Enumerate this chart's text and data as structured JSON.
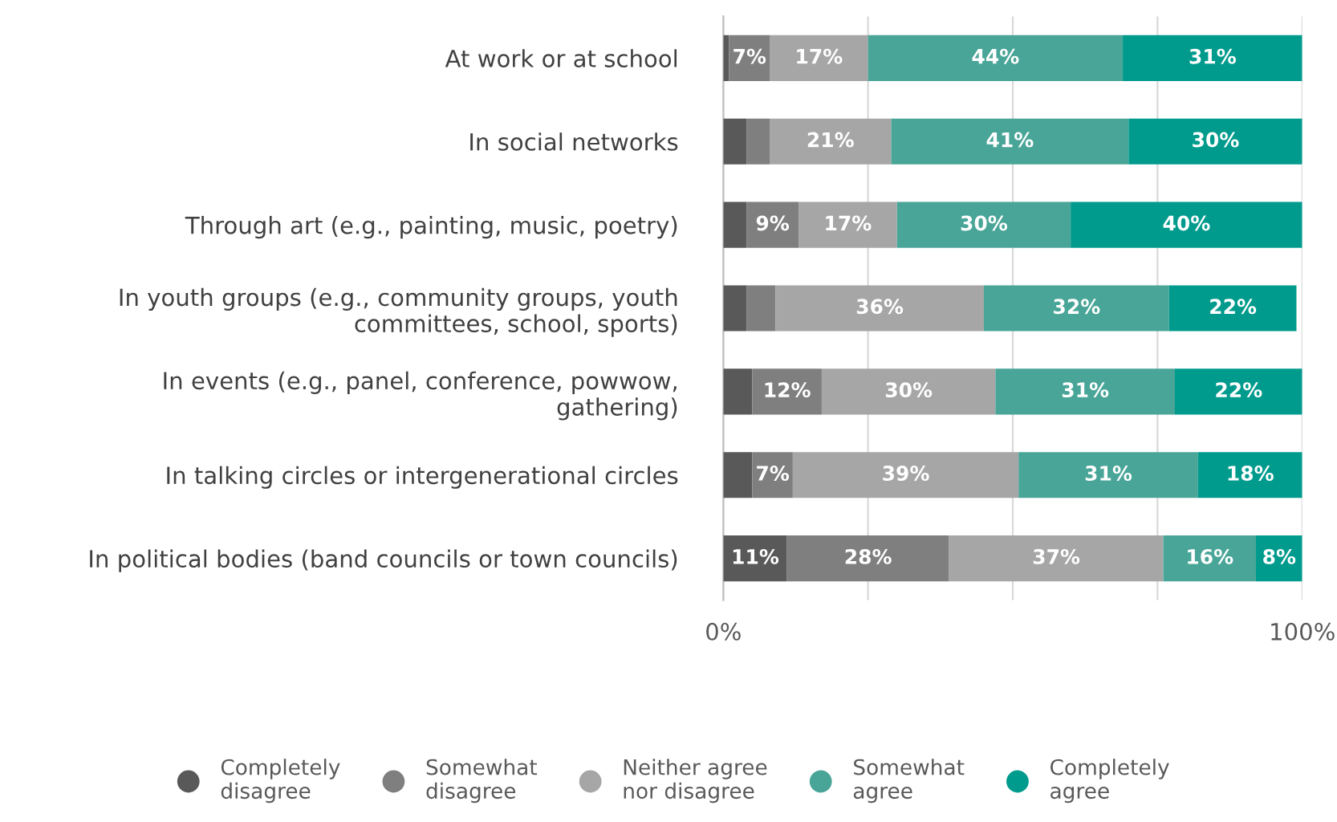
{
  "chart_data": {
    "type": "bar",
    "orientation": "horizontal",
    "stacked": true,
    "categories": [
      "At work or at school",
      "In social networks",
      "Through art (e.g., painting, music, poetry)",
      "In youth groups (e.g., community groups, youth\ncommittees, school, sports)",
      "In events (e.g., panel, conference, powwow,\ngathering)",
      "In talking circles or intergenerational circles",
      "In political bodies (band councils or town councils)"
    ],
    "series": [
      {
        "name": "Completely\ndisagree",
        "color": "#595959",
        "values": [
          1,
          4,
          4,
          4,
          5,
          5,
          11
        ],
        "value_labels": [
          null,
          null,
          null,
          null,
          null,
          null,
          "11%"
        ]
      },
      {
        "name": "Somewhat\ndisagree",
        "color": "#7f7f7f",
        "values": [
          7,
          4,
          9,
          5,
          12,
          7,
          28
        ],
        "value_labels": [
          "7%",
          null,
          "9%",
          null,
          "12%",
          "7%",
          "28%"
        ]
      },
      {
        "name": "Neither agree\nnor disagree",
        "color": "#a6a6a6",
        "values": [
          17,
          21,
          17,
          36,
          30,
          39,
          37
        ],
        "value_labels": [
          "17%",
          "21%",
          "17%",
          "36%",
          "30%",
          "39%",
          "37%"
        ]
      },
      {
        "name": "Somewhat\nagree",
        "color": "#48a597",
        "values": [
          44,
          41,
          30,
          32,
          31,
          31,
          16
        ],
        "value_labels": [
          "44%",
          "41%",
          "30%",
          "32%",
          "31%",
          "31%",
          "16%"
        ]
      },
      {
        "name": "Completely\nagree",
        "color": "#009b8d",
        "values": [
          31,
          30,
          40,
          22,
          22,
          18,
          8
        ],
        "value_labels": [
          "31%",
          "30%",
          "40%",
          "22%",
          "22%",
          "18%",
          "8%"
        ]
      }
    ],
    "xlim": [
      0,
      100
    ],
    "xticks": [
      {
        "value": 0,
        "label": "0%"
      },
      {
        "value": 25,
        "label": null
      },
      {
        "value": 50,
        "label": null
      },
      {
        "value": 75,
        "label": null
      },
      {
        "value": 100,
        "label": "100%"
      }
    ],
    "grid": "x",
    "legend": "bottom",
    "marker": "circle"
  }
}
